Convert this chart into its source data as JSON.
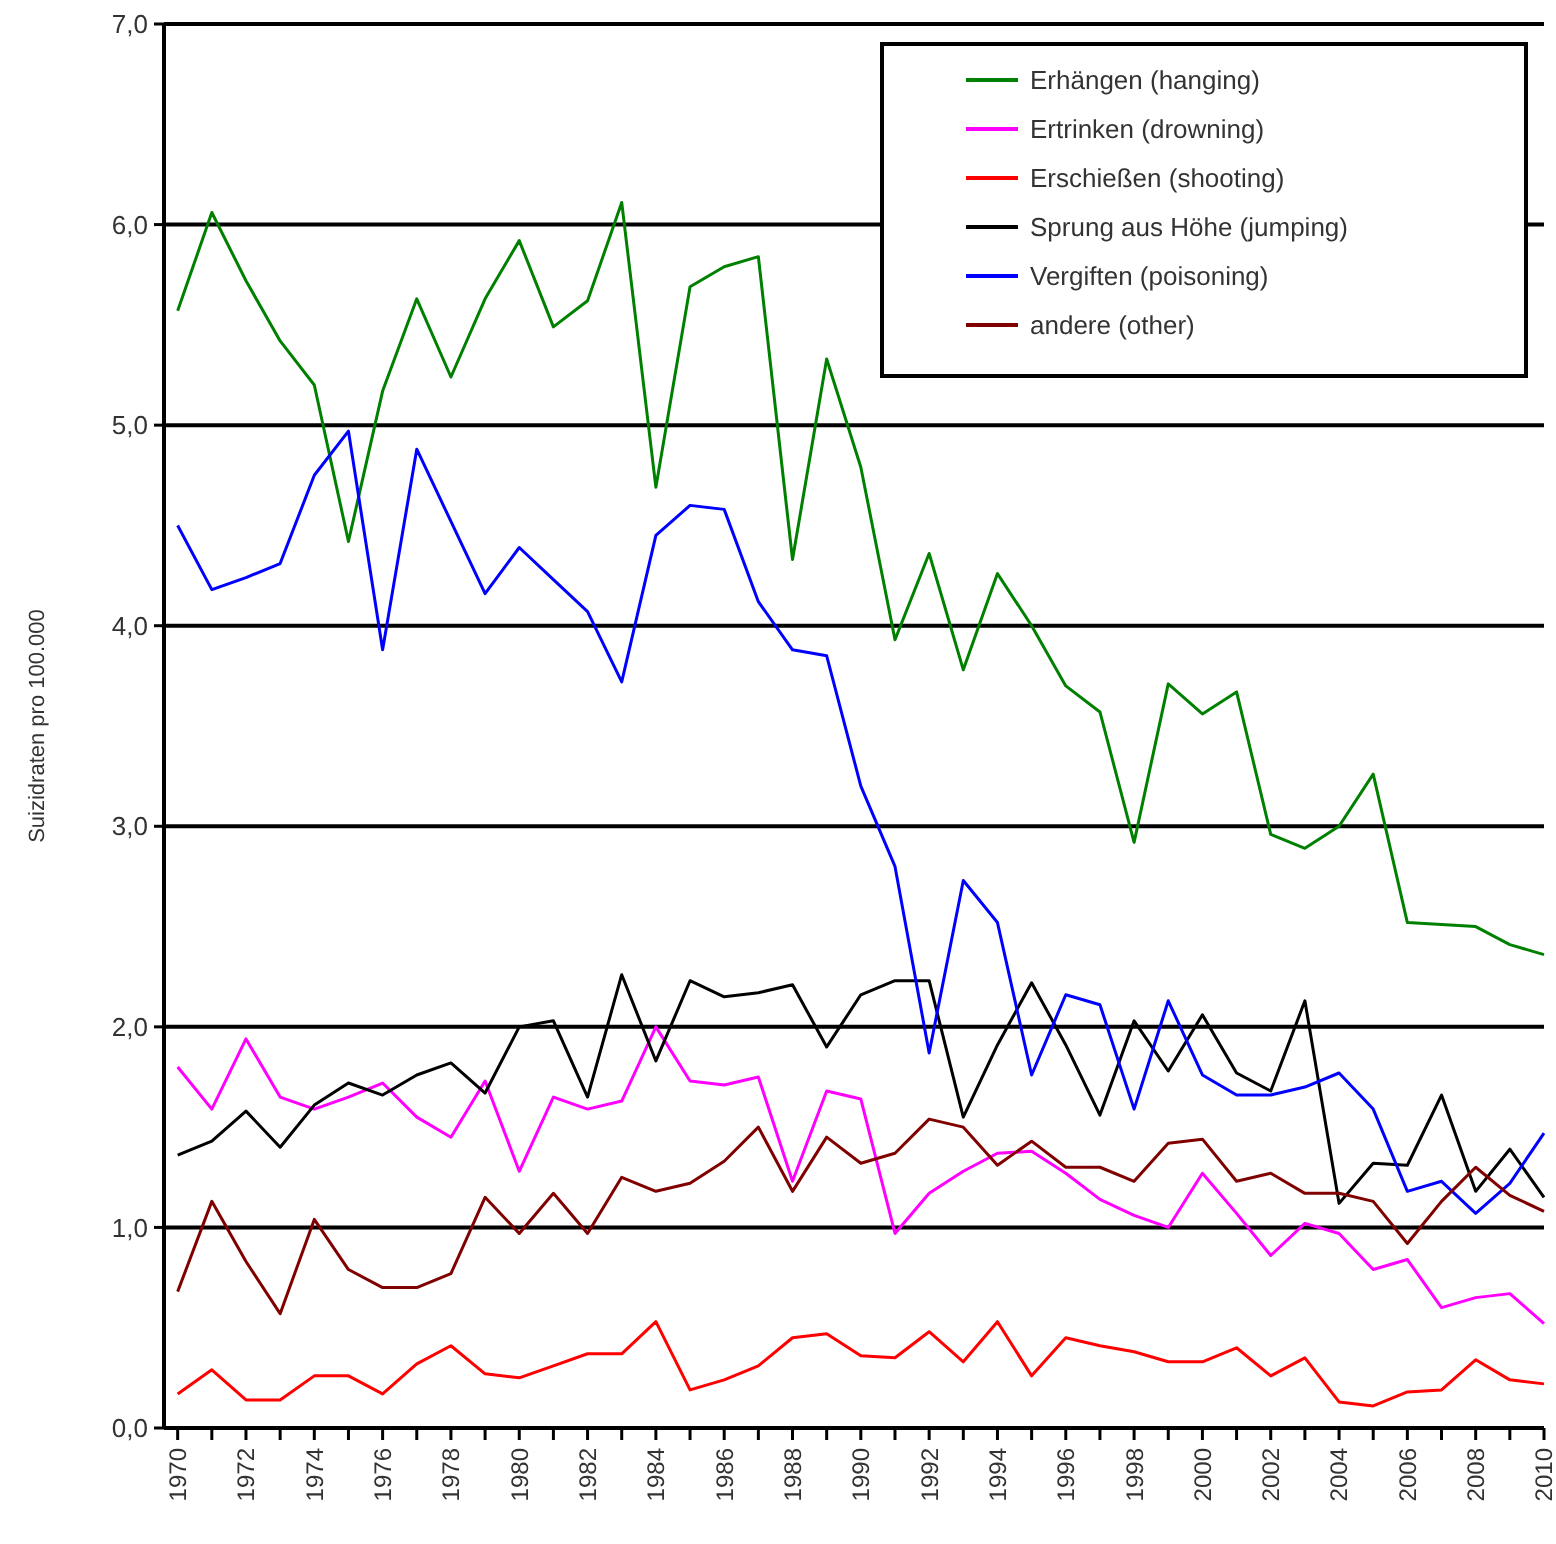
{
  "chart_data": {
    "type": "line",
    "ylabel": "Suizidraten pro 100.000",
    "x": [
      1970,
      1971,
      1972,
      1973,
      1974,
      1975,
      1976,
      1977,
      1978,
      1979,
      1980,
      1981,
      1982,
      1983,
      1984,
      1985,
      1986,
      1987,
      1988,
      1989,
      1990,
      1991,
      1992,
      1993,
      1994,
      1995,
      1996,
      1997,
      1998,
      1999,
      2000,
      2001,
      2002,
      2003,
      2004,
      2005,
      2006,
      2007,
      2008,
      2009,
      2010
    ],
    "xlim": [
      1969.6,
      2010
    ],
    "xticks": [
      1970,
      {
        "value": 1971,
        "label": null
      },
      1972,
      {
        "value": 1973,
        "label": null
      },
      1974,
      {
        "value": 1975,
        "label": null
      },
      1976,
      {
        "value": 1977,
        "label": null
      },
      1978,
      {
        "value": 1979,
        "label": null
      },
      1980,
      {
        "value": 1981,
        "label": null
      },
      1982,
      {
        "value": 1983,
        "label": null
      },
      1984,
      {
        "value": 1985,
        "label": null
      },
      1986,
      {
        "value": 1987,
        "label": null
      },
      1988,
      {
        "value": 1989,
        "label": null
      },
      1990,
      {
        "value": 1991,
        "label": null
      },
      1992,
      {
        "value": 1993,
        "label": null
      },
      1994,
      {
        "value": 1995,
        "label": null
      },
      1996,
      {
        "value": 1997,
        "label": null
      },
      1998,
      {
        "value": 1999,
        "label": null
      },
      2000,
      {
        "value": 2001,
        "label": null
      },
      2002,
      {
        "value": 2003,
        "label": null
      },
      2004,
      {
        "value": 2005,
        "label": null
      },
      2006,
      {
        "value": 2007,
        "label": null
      },
      2008,
      {
        "value": 2009,
        "label": null
      },
      2010
    ],
    "ylim": [
      0,
      7
    ],
    "yticks": [
      {
        "value": 0,
        "label": "0,0"
      },
      {
        "value": 1,
        "label": "1,0"
      },
      {
        "value": 2,
        "label": "2,0"
      },
      {
        "value": 3,
        "label": "3,0"
      },
      {
        "value": 4,
        "label": "4,0"
      },
      {
        "value": 5,
        "label": "5,0"
      },
      {
        "value": 6,
        "label": "6,0"
      },
      {
        "value": 7,
        "label": "7,0"
      }
    ],
    "grid": "y",
    "legend": "top right",
    "marker": "none",
    "line_style": "solid",
    "series": [
      {
        "name": "Erhängen (hanging)",
        "color": "#008000",
        "values": [
          5.57,
          6.06,
          5.72,
          5.42,
          5.2,
          4.42,
          5.17,
          5.63,
          5.24,
          5.63,
          5.92,
          5.49,
          5.62,
          6.11,
          4.69,
          5.69,
          5.79,
          5.84,
          4.33,
          5.33,
          4.79,
          3.93,
          4.36,
          3.78,
          4.26,
          4.0,
          3.7,
          3.57,
          2.92,
          3.71,
          3.56,
          3.67,
          2.96,
          2.89,
          3.0,
          3.26,
          2.52,
          2.51,
          2.5,
          2.41,
          2.36
        ]
      },
      {
        "name": "Ertrinken (drowning)",
        "color": "#ff00ff",
        "values": [
          1.8,
          1.59,
          1.94,
          1.65,
          1.59,
          1.65,
          1.72,
          1.55,
          1.45,
          1.73,
          1.28,
          1.65,
          1.59,
          1.63,
          2.0,
          1.73,
          1.71,
          1.75,
          1.23,
          1.68,
          1.64,
          0.97,
          1.17,
          1.28,
          1.37,
          1.38,
          1.27,
          1.14,
          1.06,
          1.0,
          1.27,
          1.07,
          0.86,
          1.02,
          0.97,
          0.79,
          0.84,
          0.6,
          0.65,
          0.67,
          0.52
        ]
      },
      {
        "name": "Erschießen (shooting)",
        "color": "#ff0000",
        "values": [
          0.17,
          0.29,
          0.14,
          0.14,
          0.26,
          0.26,
          0.17,
          0.32,
          0.41,
          0.27,
          0.25,
          0.31,
          0.37,
          0.37,
          0.53,
          0.19,
          0.24,
          0.31,
          0.45,
          0.47,
          0.36,
          0.35,
          0.48,
          0.33,
          0.53,
          0.26,
          0.45,
          0.41,
          0.38,
          0.33,
          0.33,
          0.4,
          0.26,
          0.35,
          0.13,
          0.11,
          0.18,
          0.19,
          0.34,
          0.24,
          0.22
        ]
      },
      {
        "name": "Sprung aus Höhe (jumping)",
        "color": "#000000",
        "values": [
          1.36,
          1.43,
          1.58,
          1.4,
          1.61,
          1.72,
          1.66,
          1.76,
          1.82,
          1.67,
          2.0,
          2.03,
          1.65,
          2.26,
          1.83,
          2.23,
          2.15,
          2.17,
          2.21,
          1.9,
          2.16,
          2.23,
          2.23,
          1.55,
          1.91,
          2.22,
          1.91,
          1.56,
          2.03,
          1.78,
          2.06,
          1.77,
          1.68,
          2.13,
          1.12,
          1.32,
          1.31,
          1.66,
          1.18,
          1.39,
          1.15
        ]
      },
      {
        "name": "Vergiften (poisoning)",
        "color": "#0000ff",
        "values": [
          4.5,
          4.18,
          4.24,
          4.31,
          4.75,
          4.97,
          3.88,
          4.88,
          4.52,
          4.16,
          4.39,
          4.23,
          4.07,
          3.72,
          4.45,
          4.6,
          4.58,
          4.12,
          3.88,
          3.85,
          3.2,
          2.8,
          1.87,
          2.73,
          2.52,
          1.76,
          2.16,
          2.11,
          1.59,
          2.13,
          1.76,
          1.66,
          1.66,
          1.7,
          1.77,
          1.59,
          1.18,
          1.23,
          1.07,
          1.22,
          1.47
        ]
      },
      {
        "name": "andere (other)",
        "color": "#800000",
        "values": [
          0.68,
          1.13,
          0.83,
          0.57,
          1.04,
          0.79,
          0.7,
          0.7,
          0.77,
          1.15,
          0.97,
          1.17,
          0.97,
          1.25,
          1.18,
          1.22,
          1.33,
          1.5,
          1.18,
          1.45,
          1.32,
          1.37,
          1.54,
          1.5,
          1.31,
          1.43,
          1.3,
          1.3,
          1.23,
          1.42,
          1.44,
          1.23,
          1.27,
          1.17,
          1.17,
          1.13,
          0.92,
          1.13,
          1.3,
          1.16,
          1.08
        ]
      }
    ]
  }
}
